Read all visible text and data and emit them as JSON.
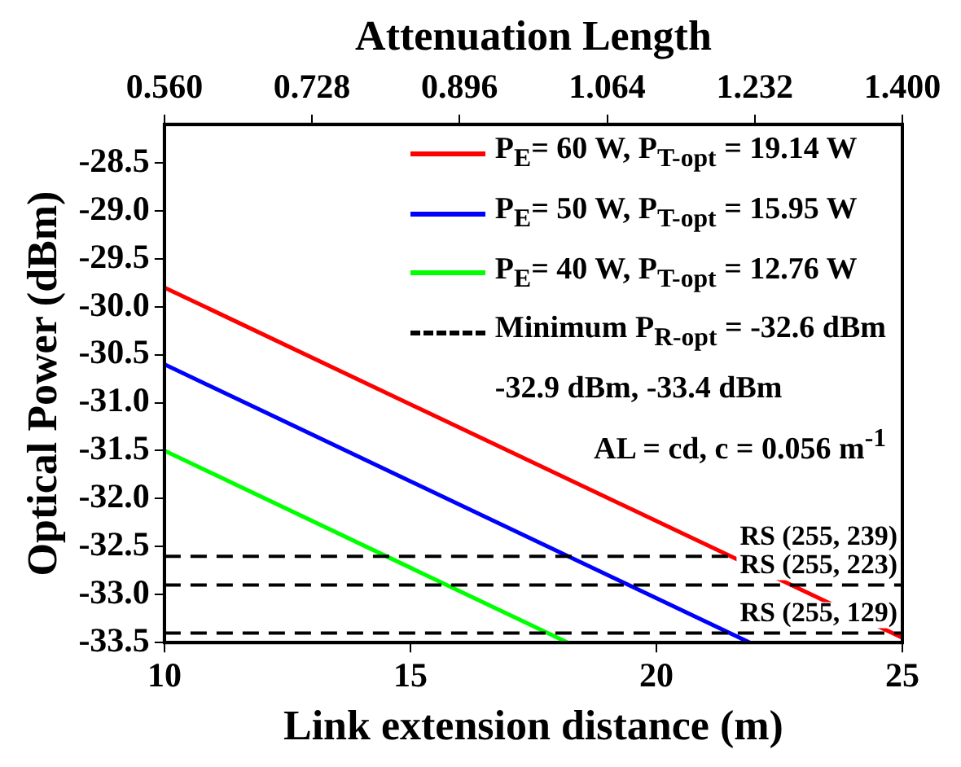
{
  "chart_data": {
    "type": "line",
    "xlabel": "Link extension distance (m)",
    "ylabel": "Optical Power (dBm)",
    "x2label": "Attenuation Length",
    "xlim": [
      10,
      25
    ],
    "xticks": [
      10,
      15,
      20,
      25
    ],
    "x2lim": [
      0.56,
      1.4
    ],
    "x2ticks": [
      {
        "value": 0.56,
        "label": "0.560"
      },
      {
        "value": 0.728,
        "label": "0.728"
      },
      {
        "value": 0.896,
        "label": "0.896"
      },
      {
        "value": 1.064,
        "label": "1.064"
      },
      {
        "value": 1.232,
        "label": "1.232"
      },
      {
        "value": 1.4,
        "label": "1.400"
      }
    ],
    "ylim": [
      -33.5,
      -28.1
    ],
    "yticks": [
      -33.5,
      {
        "value": -33,
        "label": "-33.0"
      },
      -32.5,
      {
        "value": -32,
        "label": "-32.0"
      },
      -31.5,
      {
        "value": -31,
        "label": "-31.0"
      },
      -30.5,
      {
        "value": -30,
        "label": "-30.0"
      },
      -29.5,
      {
        "value": -29,
        "label": "-29.0"
      },
      -28.5
    ],
    "marker": "none",
    "legend": "top right",
    "series": [
      {
        "name": "P$_{E}$= 60 W, P$_{T-opt}$ = 19.14 W",
        "color": "#ff0000",
        "x": [
          10,
          25
        ],
        "values": [
          -29.8,
          -33.45
        ]
      },
      {
        "name": "P$_{E}$= 50 W, P$_{T-opt}$ = 15.95 W",
        "color": "#0000ff",
        "x": [
          10,
          21.9
        ],
        "values": [
          -30.6,
          -33.5
        ]
      },
      {
        "name": "P$_{E}$= 40 W, P$_{T-opt}$ = 12.76 W",
        "color": "#00ff00",
        "x": [
          10,
          18.2
        ],
        "values": [
          -31.5,
          -33.5
        ]
      }
    ],
    "ref_lines": [
      {
        "axis": "y",
        "value": -32.6,
        "label": "RS (255, 239)",
        "color": "#000000",
        "line_style": "dashed"
      },
      {
        "axis": "y",
        "value": -32.9,
        "label": "RS (255, 223)",
        "color": "#000000",
        "line_style": "dashed"
      },
      {
        "axis": "y",
        "value": -33.4,
        "label": "RS (255, 129)",
        "color": "#000000",
        "line_style": "dashed"
      }
    ],
    "annotations": [
      "Minimum P$_{R-opt}$ = -32.6 dBm",
      "-32.9 dBm, -33.4 dBm",
      "AL = cd, c = 0.056 m$^{-1}$"
    ]
  }
}
